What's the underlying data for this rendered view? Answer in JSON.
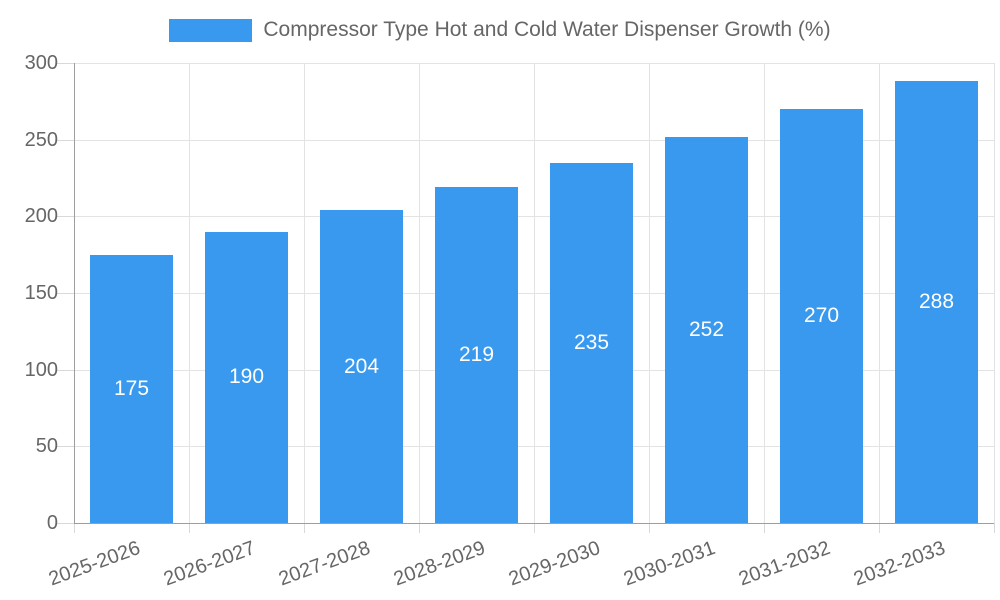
{
  "legend": {
    "label": "Compressor Type Hot and Cold Water Dispenser Growth (%)"
  },
  "chart_data": {
    "type": "bar",
    "title": "Compressor Type Hot and Cold Water Dispenser Growth (%)",
    "categories": [
      "2025-2026",
      "2026-2027",
      "2027-2028",
      "2028-2029",
      "2029-2030",
      "2030-2031",
      "2031-2032",
      "2032-2033"
    ],
    "values": [
      175,
      190,
      204,
      219,
      235,
      252,
      270,
      288
    ],
    "xlabel": "",
    "ylabel": "",
    "ylim": [
      0,
      300
    ],
    "yticks": [
      0,
      50,
      100,
      150,
      200,
      250,
      300
    ],
    "grid": true,
    "legend_position": "top",
    "value_labels": "inside-center"
  },
  "colors": {
    "bar": "#3999ee",
    "bar_value_label": "#ffffff",
    "grid": "#e3e3e3",
    "tick_mark": "#d9d9d9",
    "axis_line": "#9e9e9e",
    "tick_label": "#666666",
    "title": "#666666",
    "background": "#ffffff"
  }
}
